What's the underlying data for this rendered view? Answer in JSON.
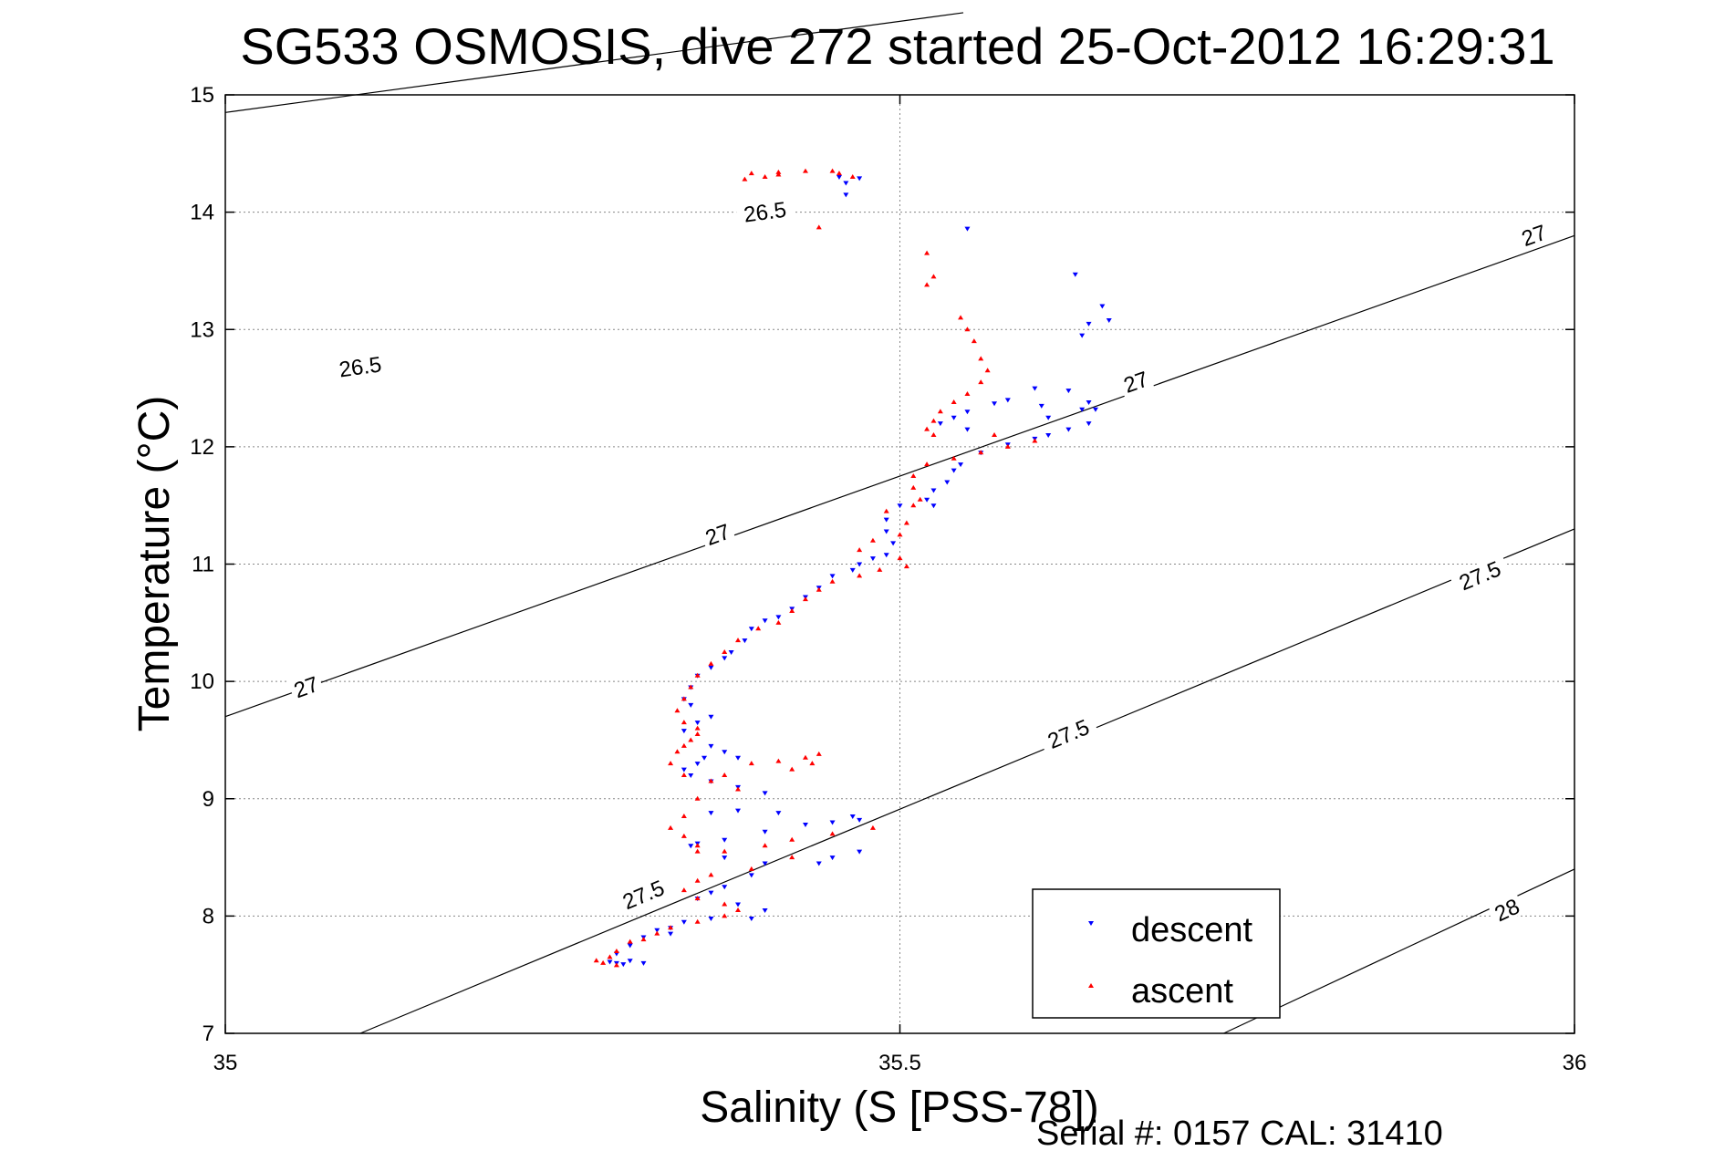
{
  "chart_data": {
    "type": "scatter",
    "title": "SG533 OSMOSIS, dive 272 started 25-Oct-2012 16:29:31",
    "xlabel": "Salinity (S [PSS-78])",
    "ylabel": "Temperature (°C)",
    "xlim": [
      35,
      36
    ],
    "ylim": [
      7,
      15
    ],
    "x_ticks": [
      "35",
      "35.5",
      "36"
    ],
    "y_ticks": [
      "7",
      "8",
      "9",
      "10",
      "11",
      "12",
      "13",
      "14",
      "15"
    ],
    "grid": true,
    "legend_position": "bottom-right",
    "footer": "Serial #: 0157  CAL: 31410",
    "isopycnals": [
      {
        "value": 26.5,
        "label": "26.5",
        "line": [
          [
            35.0,
            14.85
          ],
          [
            35.547,
            15.7
          ]
        ],
        "label_points": [
          [
            35.1,
            12.68
          ],
          [
            35.4,
            14.0
          ]
        ]
      },
      {
        "value": 27.0,
        "label": "27",
        "line": [
          [
            35.0,
            9.7
          ],
          [
            36.0,
            13.8
          ]
        ],
        "label_points": [
          [
            35.06,
            9.95
          ],
          [
            35.365,
            11.25
          ],
          [
            35.675,
            12.55
          ],
          [
            35.97,
            13.8
          ]
        ]
      },
      {
        "value": 27.5,
        "label": "27.5",
        "line": [
          [
            35.1,
            7.0
          ],
          [
            36.0,
            11.3
          ]
        ],
        "label_points": [
          [
            35.31,
            8.18
          ],
          [
            35.625,
            9.55
          ],
          [
            35.93,
            10.9
          ]
        ]
      },
      {
        "value": 28.0,
        "label": "28",
        "line": [
          [
            35.74,
            7.0
          ],
          [
            36.0,
            8.4
          ]
        ],
        "label_points": [
          [
            35.95,
            8.05
          ]
        ]
      }
    ],
    "series": [
      {
        "name": "descent",
        "color": "#0000ff",
        "marker": "triangle-down",
        "points": [
          [
            35.455,
            14.3
          ],
          [
            35.46,
            14.25
          ],
          [
            35.47,
            14.29
          ],
          [
            35.46,
            14.15
          ],
          [
            35.55,
            13.86
          ],
          [
            35.63,
            13.47
          ],
          [
            35.64,
            13.05
          ],
          [
            35.635,
            12.95
          ],
          [
            35.65,
            13.2
          ],
          [
            35.655,
            13.08
          ],
          [
            35.6,
            12.5
          ],
          [
            35.625,
            12.48
          ],
          [
            35.58,
            12.4
          ],
          [
            35.57,
            12.37
          ],
          [
            35.55,
            12.3
          ],
          [
            35.54,
            12.25
          ],
          [
            35.53,
            12.2
          ],
          [
            35.55,
            12.15
          ],
          [
            35.605,
            12.35
          ],
          [
            35.61,
            12.25
          ],
          [
            35.635,
            12.32
          ],
          [
            35.64,
            12.38
          ],
          [
            35.645,
            12.32
          ],
          [
            35.64,
            12.2
          ],
          [
            35.625,
            12.15
          ],
          [
            35.61,
            12.1
          ],
          [
            35.6,
            12.07
          ],
          [
            35.58,
            12.02
          ],
          [
            35.56,
            11.95
          ],
          [
            35.545,
            11.85
          ],
          [
            35.54,
            11.8
          ],
          [
            35.535,
            11.7
          ],
          [
            35.525,
            11.63
          ],
          [
            35.52,
            11.55
          ],
          [
            35.525,
            11.5
          ],
          [
            35.5,
            11.5
          ],
          [
            35.49,
            11.38
          ],
          [
            35.49,
            11.28
          ],
          [
            35.495,
            11.18
          ],
          [
            35.49,
            11.08
          ],
          [
            35.48,
            11.05
          ],
          [
            35.47,
            11.0
          ],
          [
            35.465,
            10.95
          ],
          [
            35.45,
            10.9
          ],
          [
            35.44,
            10.8
          ],
          [
            35.43,
            10.72
          ],
          [
            35.42,
            10.62
          ],
          [
            35.41,
            10.55
          ],
          [
            35.4,
            10.52
          ],
          [
            35.39,
            10.45
          ],
          [
            35.385,
            10.35
          ],
          [
            35.375,
            10.25
          ],
          [
            35.37,
            10.2
          ],
          [
            35.36,
            10.12
          ],
          [
            35.35,
            10.05
          ],
          [
            35.345,
            9.95
          ],
          [
            35.34,
            9.85
          ],
          [
            35.345,
            9.8
          ],
          [
            35.36,
            9.7
          ],
          [
            35.35,
            9.65
          ],
          [
            35.34,
            9.58
          ],
          [
            35.36,
            9.45
          ],
          [
            35.37,
            9.4
          ],
          [
            35.38,
            9.35
          ],
          [
            35.355,
            9.35
          ],
          [
            35.35,
            9.3
          ],
          [
            35.34,
            9.25
          ],
          [
            35.345,
            9.2
          ],
          [
            35.36,
            9.15
          ],
          [
            35.38,
            9.1
          ],
          [
            35.4,
            9.05
          ],
          [
            35.36,
            8.88
          ],
          [
            35.38,
            8.9
          ],
          [
            35.41,
            8.88
          ],
          [
            35.45,
            8.8
          ],
          [
            35.47,
            8.82
          ],
          [
            35.465,
            8.85
          ],
          [
            35.43,
            8.78
          ],
          [
            35.4,
            8.72
          ],
          [
            35.37,
            8.65
          ],
          [
            35.35,
            8.62
          ],
          [
            35.345,
            8.6
          ],
          [
            35.37,
            8.5
          ],
          [
            35.4,
            8.45
          ],
          [
            35.44,
            8.45
          ],
          [
            35.47,
            8.55
          ],
          [
            35.45,
            8.5
          ],
          [
            35.39,
            8.35
          ],
          [
            35.37,
            8.25
          ],
          [
            35.36,
            8.2
          ],
          [
            35.35,
            8.15
          ],
          [
            35.38,
            8.1
          ],
          [
            35.4,
            8.05
          ],
          [
            35.39,
            7.98
          ],
          [
            35.36,
            7.98
          ],
          [
            35.34,
            7.95
          ],
          [
            35.33,
            7.9
          ],
          [
            35.32,
            7.88
          ],
          [
            35.33,
            7.85
          ],
          [
            35.31,
            7.82
          ],
          [
            35.3,
            7.75
          ],
          [
            35.29,
            7.68
          ],
          [
            35.3,
            7.62
          ],
          [
            35.31,
            7.6
          ],
          [
            35.29,
            7.6
          ],
          [
            35.295,
            7.59
          ],
          [
            35.285,
            7.61
          ]
        ]
      },
      {
        "name": "ascent",
        "color": "#ff0000",
        "marker": "triangle-up",
        "points": [
          [
            35.385,
            14.28
          ],
          [
            35.39,
            14.33
          ],
          [
            35.41,
            14.34
          ],
          [
            35.43,
            14.35
          ],
          [
            35.45,
            14.35
          ],
          [
            35.455,
            14.33
          ],
          [
            35.465,
            14.3
          ],
          [
            35.4,
            14.3
          ],
          [
            35.41,
            14.32
          ],
          [
            35.44,
            13.87
          ],
          [
            35.52,
            13.65
          ],
          [
            35.525,
            13.45
          ],
          [
            35.52,
            13.38
          ],
          [
            35.545,
            13.1
          ],
          [
            35.55,
            13.0
          ],
          [
            35.555,
            12.9
          ],
          [
            35.56,
            12.75
          ],
          [
            35.565,
            12.65
          ],
          [
            35.56,
            12.55
          ],
          [
            35.55,
            12.45
          ],
          [
            35.54,
            12.38
          ],
          [
            35.53,
            12.3
          ],
          [
            35.525,
            12.22
          ],
          [
            35.52,
            12.15
          ],
          [
            35.525,
            12.1
          ],
          [
            35.57,
            12.1
          ],
          [
            35.6,
            12.05
          ],
          [
            35.58,
            12.0
          ],
          [
            35.56,
            11.95
          ],
          [
            35.54,
            11.9
          ],
          [
            35.52,
            11.85
          ],
          [
            35.51,
            11.75
          ],
          [
            35.51,
            11.65
          ],
          [
            35.515,
            11.55
          ],
          [
            35.51,
            11.5
          ],
          [
            35.49,
            11.45
          ],
          [
            35.505,
            11.35
          ],
          [
            35.5,
            11.25
          ],
          [
            35.48,
            11.2
          ],
          [
            35.47,
            11.12
          ],
          [
            35.5,
            11.05
          ],
          [
            35.505,
            10.98
          ],
          [
            35.485,
            10.95
          ],
          [
            35.47,
            10.9
          ],
          [
            35.45,
            10.85
          ],
          [
            35.44,
            10.78
          ],
          [
            35.43,
            10.7
          ],
          [
            35.42,
            10.6
          ],
          [
            35.41,
            10.5
          ],
          [
            35.395,
            10.45
          ],
          [
            35.38,
            10.35
          ],
          [
            35.37,
            10.25
          ],
          [
            35.36,
            10.15
          ],
          [
            35.35,
            10.05
          ],
          [
            35.345,
            9.95
          ],
          [
            35.34,
            9.85
          ],
          [
            35.335,
            9.75
          ],
          [
            35.34,
            9.65
          ],
          [
            35.35,
            9.6
          ],
          [
            35.35,
            9.55
          ],
          [
            35.345,
            9.5
          ],
          [
            35.34,
            9.45
          ],
          [
            35.335,
            9.4
          ],
          [
            35.33,
            9.3
          ],
          [
            35.34,
            9.2
          ],
          [
            35.36,
            9.15
          ],
          [
            35.37,
            9.2
          ],
          [
            35.39,
            9.3
          ],
          [
            35.41,
            9.32
          ],
          [
            35.43,
            9.35
          ],
          [
            35.44,
            9.38
          ],
          [
            35.435,
            9.3
          ],
          [
            35.42,
            9.25
          ],
          [
            35.38,
            9.08
          ],
          [
            35.35,
            9.0
          ],
          [
            35.34,
            8.85
          ],
          [
            35.33,
            8.75
          ],
          [
            35.34,
            8.68
          ],
          [
            35.35,
            8.6
          ],
          [
            35.35,
            8.55
          ],
          [
            35.37,
            8.55
          ],
          [
            35.4,
            8.6
          ],
          [
            35.42,
            8.65
          ],
          [
            35.45,
            8.7
          ],
          [
            35.48,
            8.75
          ],
          [
            35.42,
            8.5
          ],
          [
            35.39,
            8.4
          ],
          [
            35.36,
            8.35
          ],
          [
            35.35,
            8.3
          ],
          [
            35.34,
            8.22
          ],
          [
            35.35,
            8.15
          ],
          [
            35.37,
            8.1
          ],
          [
            35.38,
            8.05
          ],
          [
            35.37,
            8.0
          ],
          [
            35.35,
            7.95
          ],
          [
            35.33,
            7.9
          ],
          [
            35.32,
            7.85
          ],
          [
            35.31,
            7.8
          ],
          [
            35.3,
            7.78
          ],
          [
            35.29,
            7.7
          ],
          [
            35.285,
            7.65
          ],
          [
            35.28,
            7.6
          ],
          [
            35.275,
            7.62
          ],
          [
            35.29,
            7.58
          ]
        ]
      }
    ]
  },
  "legend": {
    "items": [
      {
        "label": "descent",
        "color": "#0000ff"
      },
      {
        "label": "ascent",
        "color": "#ff0000"
      }
    ]
  }
}
